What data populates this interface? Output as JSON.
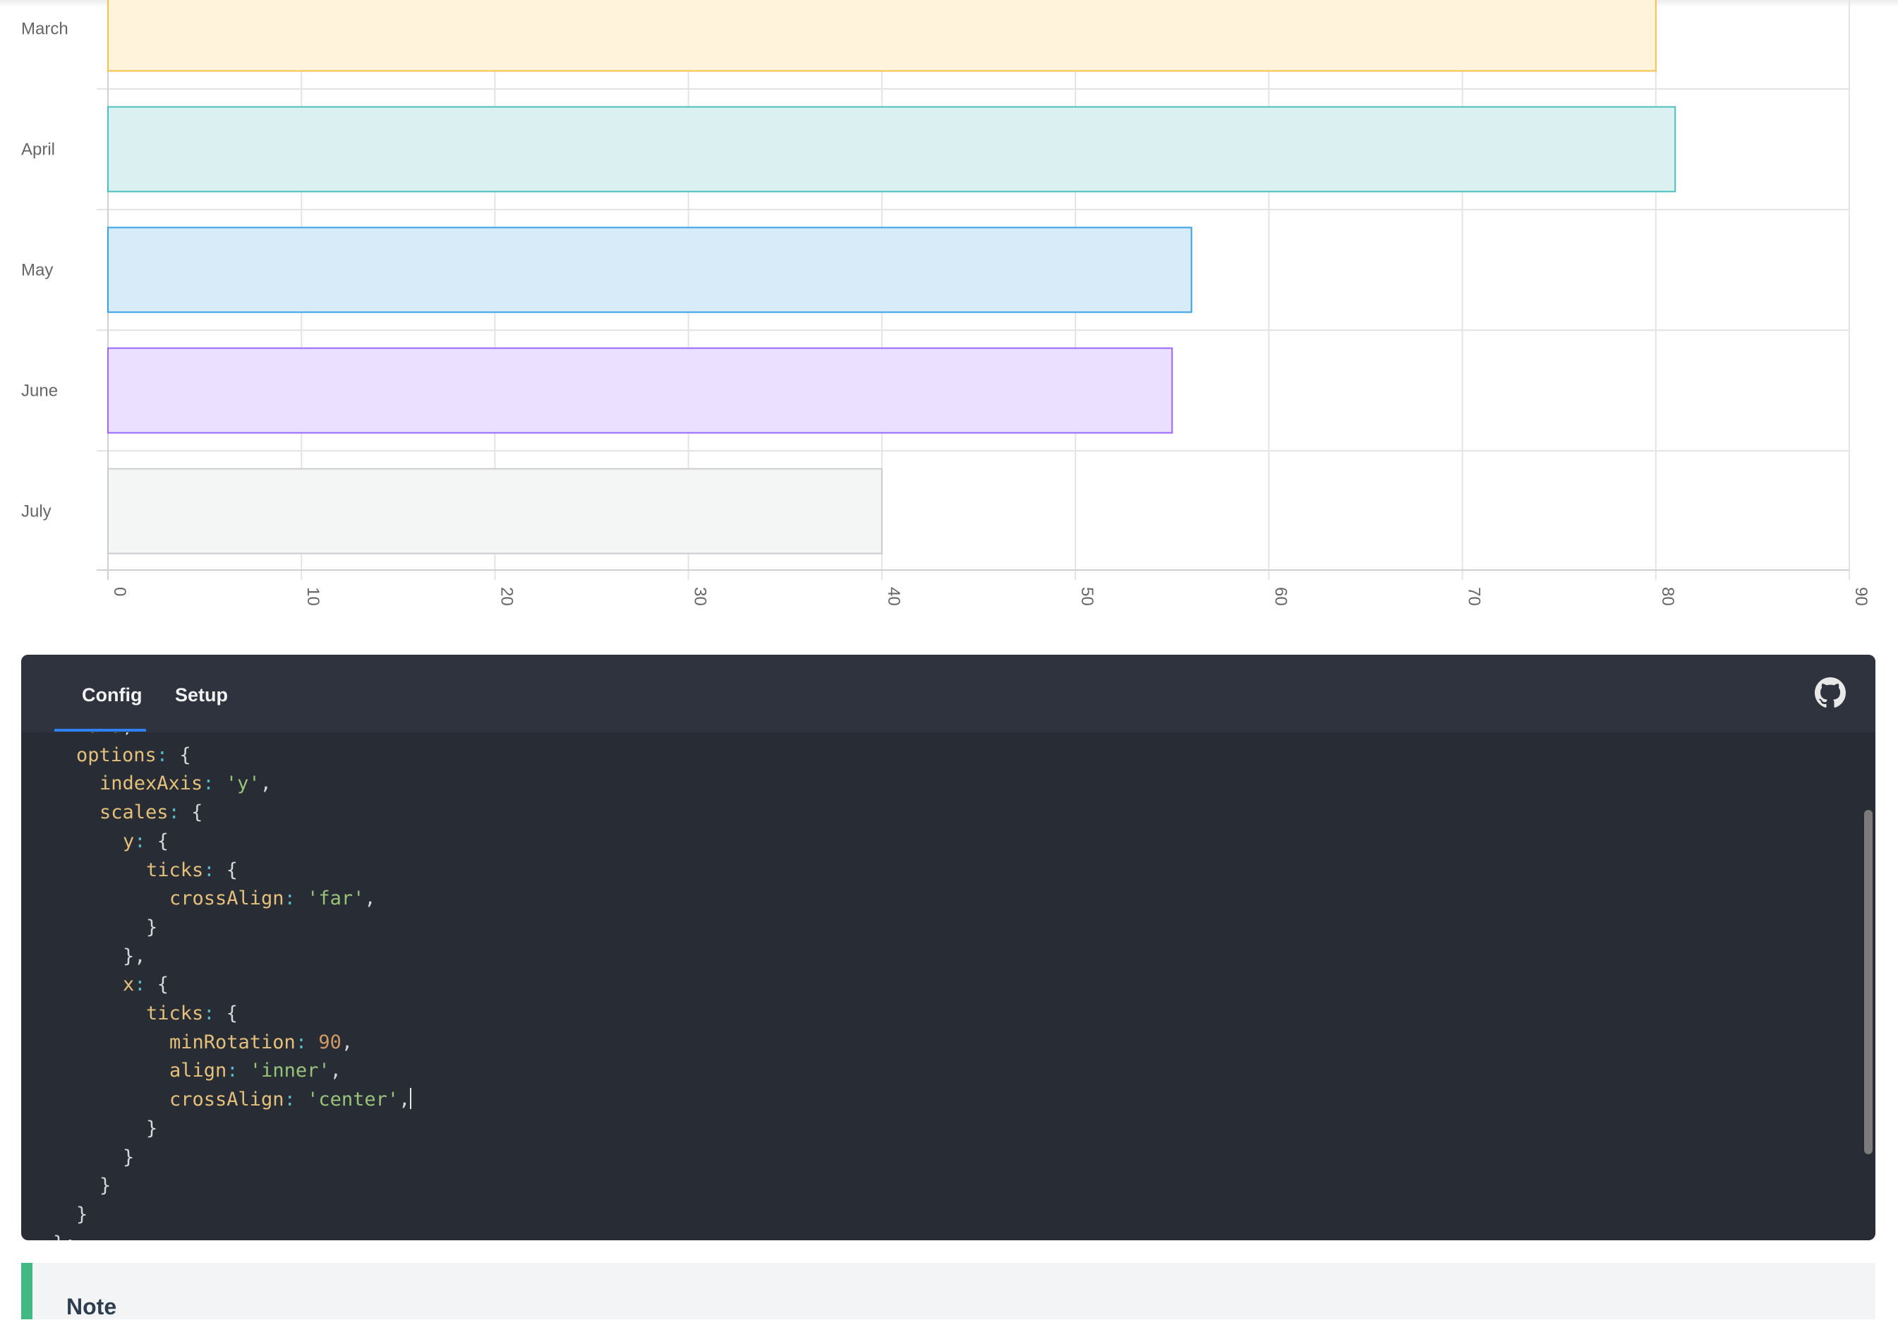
{
  "chart_data": {
    "type": "bar",
    "orientation": "horizontal",
    "categories": [
      "March",
      "April",
      "May",
      "June",
      "July"
    ],
    "values": [
      80,
      81,
      56,
      55,
      40
    ],
    "colors": [
      {
        "fill": "#fff3dc",
        "stroke": "#f5c347"
      },
      {
        "fill": "#dbf1f1",
        "stroke": "#4bbfbf"
      },
      {
        "fill": "#d7ebf8",
        "stroke": "#379fe5"
      },
      {
        "fill": "#ebe0ff",
        "stroke": "#9966ff"
      },
      {
        "fill": "#f4f5f5",
        "stroke": "#c9cbcf"
      }
    ],
    "x_ticks": [
      "0",
      "10",
      "20",
      "30",
      "40",
      "50",
      "60",
      "70",
      "80",
      "90"
    ],
    "xlim": [
      0,
      90
    ],
    "grid": true
  },
  "code_panel": {
    "tabs": [
      {
        "label": "Config",
        "active": true
      },
      {
        "label": "Setup",
        "active": false
      }
    ],
    "icon": "github-icon",
    "lines": [
      {
        "indent": 1,
        "tokens": [
          [
            "key",
            "data"
          ],
          [
            "pun",
            ","
          ]
        ]
      },
      {
        "indent": 1,
        "tokens": [
          [
            "key",
            "options"
          ],
          [
            "col",
            ":"
          ],
          [
            "pun",
            " {"
          ]
        ]
      },
      {
        "indent": 2,
        "tokens": [
          [
            "key",
            "indexAxis"
          ],
          [
            "col",
            ":"
          ],
          [
            "pun",
            " "
          ],
          [
            "str",
            "'y'"
          ],
          [
            "pun",
            ","
          ]
        ]
      },
      {
        "indent": 2,
        "tokens": [
          [
            "key",
            "scales"
          ],
          [
            "col",
            ":"
          ],
          [
            "pun",
            " {"
          ]
        ]
      },
      {
        "indent": 3,
        "tokens": [
          [
            "key",
            "y"
          ],
          [
            "col",
            ":"
          ],
          [
            "pun",
            " {"
          ]
        ]
      },
      {
        "indent": 4,
        "tokens": [
          [
            "key",
            "ticks"
          ],
          [
            "col",
            ":"
          ],
          [
            "pun",
            " {"
          ]
        ]
      },
      {
        "indent": 5,
        "tokens": [
          [
            "key",
            "crossAlign"
          ],
          [
            "col",
            ":"
          ],
          [
            "pun",
            " "
          ],
          [
            "str",
            "'far'"
          ],
          [
            "pun",
            ","
          ]
        ]
      },
      {
        "indent": 4,
        "tokens": [
          [
            "pun",
            "}"
          ]
        ]
      },
      {
        "indent": 3,
        "tokens": [
          [
            "pun",
            "},"
          ]
        ]
      },
      {
        "indent": 3,
        "tokens": [
          [
            "key",
            "x"
          ],
          [
            "col",
            ":"
          ],
          [
            "pun",
            " {"
          ]
        ]
      },
      {
        "indent": 4,
        "tokens": [
          [
            "key",
            "ticks"
          ],
          [
            "col",
            ":"
          ],
          [
            "pun",
            " {"
          ]
        ]
      },
      {
        "indent": 5,
        "tokens": [
          [
            "key",
            "minRotation"
          ],
          [
            "col",
            ":"
          ],
          [
            "pun",
            " "
          ],
          [
            "num",
            "90"
          ],
          [
            "pun",
            ","
          ]
        ]
      },
      {
        "indent": 5,
        "tokens": [
          [
            "key",
            "align"
          ],
          [
            "col",
            ":"
          ],
          [
            "pun",
            " "
          ],
          [
            "str",
            "'inner'"
          ],
          [
            "pun",
            ","
          ]
        ]
      },
      {
        "indent": 5,
        "tokens": [
          [
            "key",
            "crossAlign"
          ],
          [
            "col",
            ":"
          ],
          [
            "pun",
            " "
          ],
          [
            "str",
            "'center'"
          ],
          [
            "pun",
            ","
          ]
        ],
        "cursor": true
      },
      {
        "indent": 4,
        "tokens": [
          [
            "pun",
            "}"
          ]
        ]
      },
      {
        "indent": 3,
        "tokens": [
          [
            "pun",
            "}"
          ]
        ]
      },
      {
        "indent": 2,
        "tokens": [
          [
            "pun",
            "}"
          ]
        ]
      },
      {
        "indent": 1,
        "tokens": [
          [
            "pun",
            "}"
          ]
        ]
      },
      {
        "indent": 0,
        "tokens": [
          [
            "pun",
            "};"
          ]
        ]
      }
    ]
  },
  "note": {
    "title": "Note",
    "accent": "#42b883"
  }
}
